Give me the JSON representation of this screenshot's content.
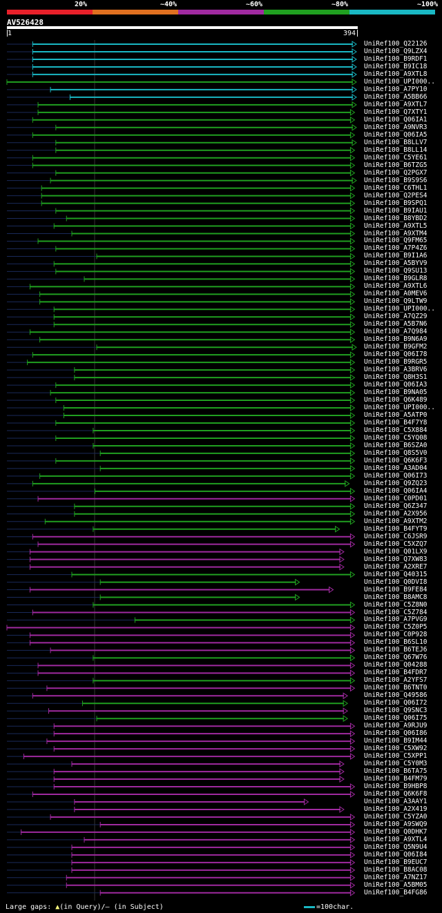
{
  "legend": {
    "items": [
      {
        "label": "20%",
        "color": "#e8202a"
      },
      {
        "label": "~40%",
        "color": "#e07020"
      },
      {
        "label": "~60%",
        "color": "#a02aa0"
      },
      {
        "label": "~80%",
        "color": "#20a020"
      },
      {
        "label": "~100%",
        "color": "#1ab8c4"
      }
    ]
  },
  "query": {
    "name": "AV526428",
    "start": "1",
    "end": "394"
  },
  "footer": {
    "large_gaps_prefix": "Large gaps: ",
    "query_gap_marker": "▲",
    "in_query": "(in Query)/",
    "subject_gap_marker": "–",
    "in_subject": " (in Subject)",
    "scale_label": "=100char."
  },
  "hits": [
    {
      "name": "UniRef100_Q22126",
      "color": "#1ab8c4",
      "start": 30,
      "end": 394
    },
    {
      "name": "UniRef100_Q9LZX4",
      "color": "#1ab8c4",
      "start": 30,
      "end": 394
    },
    {
      "name": "UniRef100_B9RDF1",
      "color": "#1ab8c4",
      "start": 30,
      "end": 394
    },
    {
      "name": "UniRef100_B9IC18",
      "color": "#1ab8c4",
      "start": 30,
      "end": 394
    },
    {
      "name": "UniRef100_A9XTL8",
      "color": "#1ab8c4",
      "start": 30,
      "end": 394
    },
    {
      "name": "UniRef100_UPI000..",
      "color": "#20a020",
      "start": 1,
      "end": 394
    },
    {
      "name": "UniRef100_A7PY10",
      "color": "#1ab8c4",
      "start": 50,
      "end": 394
    },
    {
      "name": "UniRef100_A5BB66",
      "color": "#1ab8c4",
      "start": 72,
      "end": 394
    },
    {
      "name": "UniRef100_A9XTL7",
      "color": "#20a020",
      "start": 36,
      "end": 394
    },
    {
      "name": "UniRef100_Q7XTY1",
      "color": "#20a020",
      "start": 36,
      "end": 392
    },
    {
      "name": "UniRef100_Q06IA1",
      "color": "#20a020",
      "start": 30,
      "end": 392
    },
    {
      "name": "UniRef100_A9NVR3",
      "color": "#20a020",
      "start": 56,
      "end": 394
    },
    {
      "name": "UniRef100_Q06IA5",
      "color": "#20a020",
      "start": 30,
      "end": 392
    },
    {
      "name": "UniRef100_B8LLV7",
      "color": "#20a020",
      "start": 56,
      "end": 394
    },
    {
      "name": "UniRef100_B8LL14",
      "color": "#20a020",
      "start": 56,
      "end": 392
    },
    {
      "name": "UniRef100_C5YE61",
      "color": "#20a020",
      "start": 30,
      "end": 392
    },
    {
      "name": "UniRef100_B6TZG5",
      "color": "#20a020",
      "start": 30,
      "end": 392
    },
    {
      "name": "UniRef100_Q2PGX7",
      "color": "#20a020",
      "start": 56,
      "end": 392
    },
    {
      "name": "UniRef100_B9S9S6",
      "color": "#20a020",
      "start": 50,
      "end": 394
    },
    {
      "name": "UniRef100_C6THL1",
      "color": "#20a020",
      "start": 40,
      "end": 392
    },
    {
      "name": "UniRef100_Q2PES4",
      "color": "#20a020",
      "start": 40,
      "end": 392
    },
    {
      "name": "UniRef100_B9SPQ1",
      "color": "#20a020",
      "start": 40,
      "end": 392
    },
    {
      "name": "UniRef100_B9IAU1",
      "color": "#20a020",
      "start": 56,
      "end": 392
    },
    {
      "name": "UniRef100_B8YBD2",
      "color": "#20a020",
      "start": 68,
      "end": 392
    },
    {
      "name": "UniRef100_A9XTL5",
      "color": "#20a020",
      "start": 54,
      "end": 392
    },
    {
      "name": "UniRef100_A9XTM4",
      "color": "#20a020",
      "start": 74,
      "end": 392
    },
    {
      "name": "UniRef100_Q9FM65",
      "color": "#20a020",
      "start": 36,
      "end": 392
    },
    {
      "name": "UniRef100_A7P4Z6",
      "color": "#20a020",
      "start": 56,
      "end": 392
    },
    {
      "name": "UniRef100_B9I1A6",
      "color": "#20a020",
      "start": 102,
      "end": 392
    },
    {
      "name": "UniRef100_A5BYV9",
      "color": "#20a020",
      "start": 54,
      "end": 392
    },
    {
      "name": "UniRef100_Q9SU13",
      "color": "#20a020",
      "start": 56,
      "end": 392
    },
    {
      "name": "UniRef100_B9GLR8",
      "color": "#20a020",
      "start": 88,
      "end": 392
    },
    {
      "name": "UniRef100_A9XTL6",
      "color": "#20a020",
      "start": 27,
      "end": 392
    },
    {
      "name": "UniRef100_A0MEV6",
      "color": "#20a020",
      "start": 38,
      "end": 392
    },
    {
      "name": "UniRef100_Q9LTW9",
      "color": "#20a020",
      "start": 38,
      "end": 392
    },
    {
      "name": "UniRef100_UPI000..",
      "color": "#20a020",
      "start": 54,
      "end": 392
    },
    {
      "name": "UniRef100_A7QZ29",
      "color": "#20a020",
      "start": 54,
      "end": 392
    },
    {
      "name": "UniRef100_A5B7N6",
      "color": "#20a020",
      "start": 54,
      "end": 392
    },
    {
      "name": "UniRef100_A7Q984",
      "color": "#20a020",
      "start": 27,
      "end": 392
    },
    {
      "name": "UniRef100_B9N6A9",
      "color": "#20a020",
      "start": 38,
      "end": 392
    },
    {
      "name": "UniRef100_B9GFM2",
      "color": "#20a020",
      "start": 102,
      "end": 394
    },
    {
      "name": "UniRef100_Q06I78",
      "color": "#20a020",
      "start": 30,
      "end": 392
    },
    {
      "name": "UniRef100_B9RGR5",
      "color": "#20a020",
      "start": 24,
      "end": 392
    },
    {
      "name": "UniRef100_A3BRV6",
      "color": "#20a020",
      "start": 77,
      "end": 392
    },
    {
      "name": "UniRef100_Q8H3S1",
      "color": "#20a020",
      "start": 77,
      "end": 392
    },
    {
      "name": "UniRef100_Q06IA3",
      "color": "#20a020",
      "start": 56,
      "end": 392
    },
    {
      "name": "UniRef100_B9NA05",
      "color": "#20a020",
      "start": 50,
      "end": 392
    },
    {
      "name": "UniRef100_Q6K489",
      "color": "#20a020",
      "start": 56,
      "end": 392
    },
    {
      "name": "UniRef100_UPI000..",
      "color": "#20a020",
      "start": 65,
      "end": 392
    },
    {
      "name": "UniRef100_A5ATP0",
      "color": "#20a020",
      "start": 65,
      "end": 392
    },
    {
      "name": "UniRef100_B4F7Y8",
      "color": "#20a020",
      "start": 56,
      "end": 392
    },
    {
      "name": "UniRef100_C5X884",
      "color": "#20a020",
      "start": 98,
      "end": 392
    },
    {
      "name": "UniRef100_C5YQ08",
      "color": "#20a020",
      "start": 56,
      "end": 392
    },
    {
      "name": "UniRef100_B6SZA0",
      "color": "#20a020",
      "start": 98,
      "end": 392
    },
    {
      "name": "UniRef100_Q8S5V0",
      "color": "#20a020",
      "start": 106,
      "end": 392
    },
    {
      "name": "UniRef100_Q6K6F3",
      "color": "#20a020",
      "start": 56,
      "end": 392
    },
    {
      "name": "UniRef100_A3AD04",
      "color": "#20a020",
      "start": 106,
      "end": 392
    },
    {
      "name": "UniRef100_Q06I73",
      "color": "#20a020",
      "start": 38,
      "end": 392
    },
    {
      "name": "UniRef100_Q9ZQ23",
      "color": "#20a020",
      "start": 30,
      "end": 386
    },
    {
      "name": "UniRef100_Q06IA4",
      "color": "#20a020",
      "start": 100,
      "end": 392
    },
    {
      "name": "UniRef100_C0PD01",
      "color": "#a02aa0",
      "start": 36,
      "end": 392
    },
    {
      "name": "UniRef100_Q6Z347",
      "color": "#20a020",
      "start": 77,
      "end": 392
    },
    {
      "name": "UniRef100_A2X956",
      "color": "#20a020",
      "start": 77,
      "end": 392
    },
    {
      "name": "UniRef100_A9XTM2",
      "color": "#20a020",
      "start": 44,
      "end": 392
    },
    {
      "name": "UniRef100_B4FYT9",
      "color": "#20a020",
      "start": 98,
      "end": 375
    },
    {
      "name": "UniRef100_C6JSR9",
      "color": "#a02aa0",
      "start": 30,
      "end": 392
    },
    {
      "name": "UniRef100_C5XZQ7",
      "color": "#a02aa0",
      "start": 36,
      "end": 392
    },
    {
      "name": "UniRef100_Q01LX9",
      "color": "#a02aa0",
      "start": 27,
      "end": 380
    },
    {
      "name": "UniRef100_Q7XW83",
      "color": "#a02aa0",
      "start": 27,
      "end": 380
    },
    {
      "name": "UniRef100_A2XRE7",
      "color": "#a02aa0",
      "start": 27,
      "end": 380
    },
    {
      "name": "UniRef100_Q40315",
      "color": "#20a020",
      "start": 74,
      "end": 392
    },
    {
      "name": "UniRef100_Q0DVI8",
      "color": "#20a020",
      "start": 106,
      "end": 330
    },
    {
      "name": "UniRef100_B9FE84",
      "color": "#a02aa0",
      "start": 27,
      "end": 368
    },
    {
      "name": "UniRef100_B8AMC8",
      "color": "#20a020",
      "start": 106,
      "end": 330
    },
    {
      "name": "UniRef100_C5Z8N0",
      "color": "#20a020",
      "start": 98,
      "end": 392
    },
    {
      "name": "UniRef100_C5Z784",
      "color": "#a02aa0",
      "start": 30,
      "end": 392
    },
    {
      "name": "UniRef100_A7PVG9",
      "color": "#20a020",
      "start": 145,
      "end": 392
    },
    {
      "name": "UniRef100_C5Z0P5",
      "color": "#a02aa0",
      "start": 1,
      "end": 392
    },
    {
      "name": "UniRef100_C0P928",
      "color": "#a02aa0",
      "start": 27,
      "end": 392
    },
    {
      "name": "UniRef100_B6SL10",
      "color": "#a02aa0",
      "start": 27,
      "end": 392
    },
    {
      "name": "UniRef100_B6TEJ6",
      "color": "#a02aa0",
      "start": 50,
      "end": 392
    },
    {
      "name": "UniRef100_Q67W76",
      "color": "#20a020",
      "start": 98,
      "end": 392
    },
    {
      "name": "UniRef100_Q04288",
      "color": "#a02aa0",
      "start": 36,
      "end": 392
    },
    {
      "name": "UniRef100_B4FDR7",
      "color": "#a02aa0",
      "start": 36,
      "end": 392
    },
    {
      "name": "UniRef100_A2YFS7",
      "color": "#20a020",
      "start": 98,
      "end": 392
    },
    {
      "name": "UniRef100_B6TNT0",
      "color": "#a02aa0",
      "start": 46,
      "end": 392
    },
    {
      "name": "UniRef100_Q49586",
      "color": "#a02aa0",
      "start": 30,
      "end": 384
    },
    {
      "name": "UniRef100_Q06I72",
      "color": "#20a020",
      "start": 86,
      "end": 384
    },
    {
      "name": "UniRef100_Q9SNC3",
      "color": "#a02aa0",
      "start": 48,
      "end": 384
    },
    {
      "name": "UniRef100_Q06I75",
      "color": "#20a020",
      "start": 102,
      "end": 384
    },
    {
      "name": "UniRef100_A9RJU9",
      "color": "#a02aa0",
      "start": 54,
      "end": 392
    },
    {
      "name": "UniRef100_Q06I86",
      "color": "#a02aa0",
      "start": 54,
      "end": 392
    },
    {
      "name": "UniRef100_B9IM44",
      "color": "#a02aa0",
      "start": 46,
      "end": 392
    },
    {
      "name": "UniRef100_C5XW92",
      "color": "#a02aa0",
      "start": 54,
      "end": 392
    },
    {
      "name": "UniRef100_C5XPP1",
      "color": "#a02aa0",
      "start": 20,
      "end": 392
    },
    {
      "name": "UniRef100_C5Y0M3",
      "color": "#a02aa0",
      "start": 74,
      "end": 380
    },
    {
      "name": "UniRef100_B6TA75",
      "color": "#a02aa0",
      "start": 54,
      "end": 380
    },
    {
      "name": "UniRef100_B4FM79",
      "color": "#a02aa0",
      "start": 54,
      "end": 380
    },
    {
      "name": "UniRef100_B9HBP8",
      "color": "#a02aa0",
      "start": 54,
      "end": 392
    },
    {
      "name": "UniRef100_Q6K6F8",
      "color": "#a02aa0",
      "start": 30,
      "end": 392
    },
    {
      "name": "UniRef100_A3AAY1",
      "color": "#a02aa0",
      "start": 77,
      "end": 340
    },
    {
      "name": "UniRef100_A2X419",
      "color": "#a02aa0",
      "start": 77,
      "end": 380
    },
    {
      "name": "UniRef100_C5YZA0",
      "color": "#a02aa0",
      "start": 50,
      "end": 392
    },
    {
      "name": "UniRef100_A9SWQ9",
      "color": "#a02aa0",
      "start": 106,
      "end": 392
    },
    {
      "name": "UniRef100_Q0DHK7",
      "color": "#a02aa0",
      "start": 17,
      "end": 392
    },
    {
      "name": "UniRef100_A9XTL4",
      "color": "#a02aa0",
      "start": 88,
      "end": 392
    },
    {
      "name": "UniRef100_Q5N9U4",
      "color": "#a02aa0",
      "start": 74,
      "end": 392
    },
    {
      "name": "UniRef100_Q06I84",
      "color": "#a02aa0",
      "start": 74,
      "end": 392
    },
    {
      "name": "UniRef100_B9EUC7",
      "color": "#a02aa0",
      "start": 74,
      "end": 392
    },
    {
      "name": "UniRef100_B8AC08",
      "color": "#a02aa0",
      "start": 74,
      "end": 392
    },
    {
      "name": "UniRef100_A7NZ17",
      "color": "#a02aa0",
      "start": 68,
      "end": 392
    },
    {
      "name": "UniRef100_A5BM05",
      "color": "#a02aa0",
      "start": 68,
      "end": 392
    },
    {
      "name": "UniRef100_B4FG86",
      "color": "#a02aa0",
      "start": 106,
      "end": 392
    }
  ]
}
